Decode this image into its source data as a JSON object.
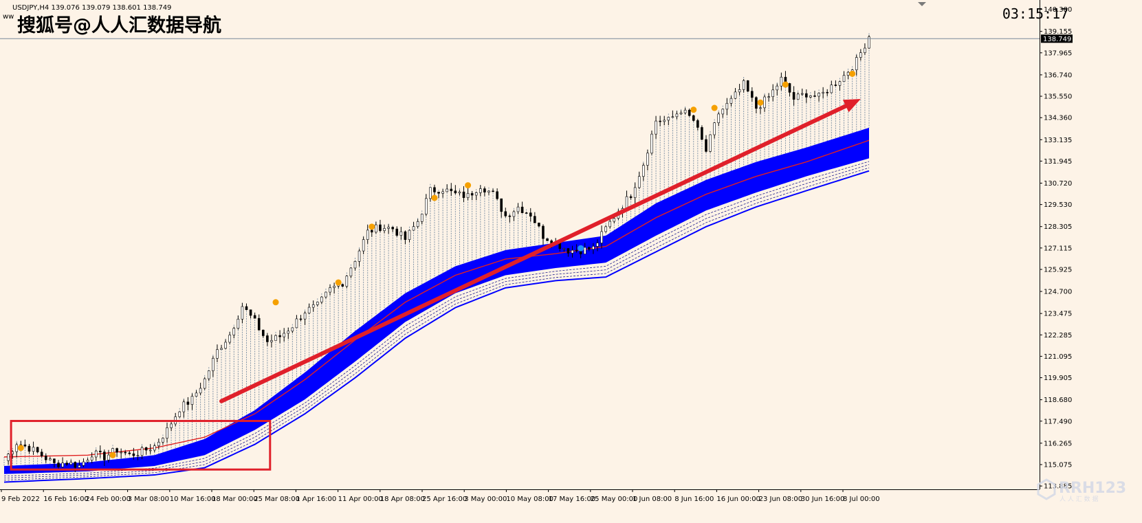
{
  "header": {
    "symbol_ohlc": "USDJPY,H4  139.076 139.079 138.601 138.749",
    "sub_label": "ww",
    "watermark": "搜狐号@人人汇数据导航",
    "clock": "03:15:17"
  },
  "logo": {
    "text": "RRH123",
    "sub": "人 人 汇 数 据"
  },
  "colors": {
    "background": "#fdf3e7",
    "candle": "#000000",
    "fill_lines": "#4a6a8a",
    "ribbon": "#0000ff",
    "ma_red": "#e02020",
    "arrow": "#e0202a",
    "box": "#e0202a",
    "dot_orange": "#f5a000",
    "dot_blue": "#1e90ff",
    "price_label_bg": "#000000"
  },
  "chart_data": {
    "type": "candlestick",
    "symbol": "USDJPY",
    "timeframe": "H4",
    "current_price": "138.749",
    "ylim": [
      113.7,
      140.9
    ],
    "y_ticks": [
      "140.380",
      "139.155",
      "137.965",
      "136.740",
      "135.550",
      "134.360",
      "133.135",
      "131.945",
      "130.720",
      "129.530",
      "128.305",
      "127.115",
      "125.925",
      "124.700",
      "123.475",
      "122.285",
      "121.095",
      "119.905",
      "118.680",
      "117.490",
      "116.265",
      "115.075",
      "113.885"
    ],
    "x_ticks": [
      "9 Feb 2022",
      "16 Feb 16:00",
      "24 Feb 00:00",
      "3 Mar 08:00",
      "10 Mar 16:00",
      "18 Mar 00:00",
      "25 Mar 08:00",
      "1 Apr 16:00",
      "11 Apr 00:00",
      "18 Apr 08:00",
      "25 Apr 16:00",
      "3 May 00:00",
      "10 May 08:00",
      "17 May 16:00",
      "25 May 00:00",
      "1 Jun 08:00",
      "8 Jun 16:00",
      "16 Jun 00:00",
      "23 Jun 08:00",
      "30 Jun 16:00",
      "8 Jul 00:00"
    ],
    "price_path": [
      [
        0,
        115.3
      ],
      [
        3,
        116.3
      ],
      [
        6,
        116.0
      ],
      [
        9,
        115.6
      ],
      [
        12,
        115.1
      ],
      [
        15,
        115.2
      ],
      [
        18,
        115.0
      ],
      [
        21,
        115.7
      ],
      [
        24,
        115.5
      ],
      [
        27,
        115.9
      ],
      [
        30,
        115.6
      ],
      [
        33,
        115.8
      ],
      [
        36,
        116.1
      ],
      [
        39,
        117.0
      ],
      [
        42,
        118.2
      ],
      [
        45,
        118.7
      ],
      [
        48,
        119.8
      ],
      [
        51,
        121.4
      ],
      [
        54,
        122.3
      ],
      [
        57,
        123.9
      ],
      [
        60,
        123.0
      ],
      [
        63,
        121.9
      ],
      [
        66,
        122.2
      ],
      [
        69,
        122.8
      ],
      [
        72,
        123.6
      ],
      [
        75,
        123.9
      ],
      [
        78,
        124.8
      ],
      [
        81,
        125.2
      ],
      [
        84,
        126.5
      ],
      [
        87,
        128.0
      ],
      [
        90,
        128.3
      ],
      [
        93,
        128.2
      ],
      [
        96,
        127.6
      ],
      [
        99,
        128.6
      ],
      [
        102,
        130.3
      ],
      [
        105,
        130.4
      ],
      [
        108,
        130.1
      ],
      [
        111,
        130.0
      ],
      [
        114,
        130.6
      ],
      [
        117,
        130.1
      ],
      [
        120,
        128.9
      ],
      [
        123,
        129.4
      ],
      [
        126,
        129.0
      ],
      [
        129,
        127.8
      ],
      [
        132,
        127.4
      ],
      [
        135,
        127.0
      ],
      [
        138,
        127.0
      ],
      [
        141,
        127.1
      ],
      [
        144,
        128.2
      ],
      [
        147,
        129.2
      ],
      [
        150,
        130.1
      ],
      [
        153,
        131.8
      ],
      [
        156,
        134.2
      ],
      [
        159,
        134.2
      ],
      [
        162,
        134.8
      ],
      [
        165,
        134.2
      ],
      [
        168,
        132.5
      ],
      [
        171,
        134.6
      ],
      [
        174,
        135.3
      ],
      [
        177,
        136.2
      ],
      [
        180,
        134.9
      ],
      [
        183,
        135.5
      ],
      [
        186,
        136.5
      ],
      [
        189,
        135.4
      ],
      [
        192,
        135.7
      ],
      [
        195,
        135.5
      ],
      [
        198,
        136.1
      ],
      [
        201,
        136.7
      ],
      [
        204,
        137.5
      ],
      [
        207,
        138.9
      ]
    ],
    "ribbon": {
      "blue_top": [
        [
          0,
          115.0
        ],
        [
          20,
          115.2
        ],
        [
          36,
          115.6
        ],
        [
          48,
          116.5
        ],
        [
          60,
          118.1
        ],
        [
          72,
          120.2
        ],
        [
          84,
          122.5
        ],
        [
          96,
          124.6
        ],
        [
          108,
          126.1
        ],
        [
          120,
          127.0
        ],
        [
          132,
          127.4
        ],
        [
          144,
          127.8
        ],
        [
          156,
          129.6
        ],
        [
          168,
          130.9
        ],
        [
          180,
          131.9
        ],
        [
          192,
          132.7
        ],
        [
          207,
          133.8
        ]
      ],
      "blue_bottom": [
        [
          0,
          114.55
        ],
        [
          20,
          114.7
        ],
        [
          36,
          115.0
        ],
        [
          48,
          115.6
        ],
        [
          60,
          117.0
        ],
        [
          72,
          118.7
        ],
        [
          84,
          120.8
        ],
        [
          96,
          123.0
        ],
        [
          108,
          124.6
        ],
        [
          120,
          125.6
        ],
        [
          132,
          126.0
        ],
        [
          144,
          126.3
        ],
        [
          156,
          127.8
        ],
        [
          168,
          129.2
        ],
        [
          180,
          130.2
        ],
        [
          192,
          131.1
        ],
        [
          207,
          132.1
        ]
      ],
      "red_ma": [
        [
          0,
          115.5
        ],
        [
          20,
          115.6
        ],
        [
          36,
          116.0
        ],
        [
          48,
          116.6
        ],
        [
          60,
          117.9
        ],
        [
          72,
          119.8
        ],
        [
          84,
          122.0
        ],
        [
          96,
          124.1
        ],
        [
          108,
          125.6
        ],
        [
          120,
          126.5
        ],
        [
          132,
          126.8
        ],
        [
          144,
          127.2
        ],
        [
          156,
          128.8
        ],
        [
          168,
          130.1
        ],
        [
          180,
          131.1
        ],
        [
          192,
          131.9
        ],
        [
          207,
          133.1
        ]
      ],
      "blue_lower": [
        [
          0,
          114.1
        ],
        [
          20,
          114.3
        ],
        [
          36,
          114.5
        ],
        [
          48,
          114.9
        ],
        [
          60,
          116.2
        ],
        [
          72,
          117.9
        ],
        [
          84,
          119.9
        ],
        [
          96,
          122.1
        ],
        [
          108,
          123.8
        ],
        [
          120,
          124.9
        ],
        [
          132,
          125.3
        ],
        [
          144,
          125.5
        ],
        [
          156,
          126.9
        ],
        [
          168,
          128.3
        ],
        [
          180,
          129.4
        ],
        [
          192,
          130.3
        ],
        [
          207,
          131.4
        ]
      ]
    },
    "orange_dots": [
      [
        4,
        116.0
      ],
      [
        26,
        115.6
      ],
      [
        65,
        124.1
      ],
      [
        80,
        125.2
      ],
      [
        88,
        128.3
      ],
      [
        103,
        129.9
      ],
      [
        111,
        130.6
      ],
      [
        165,
        134.8
      ],
      [
        170,
        134.9
      ],
      [
        181,
        135.2
      ],
      [
        187,
        136.2
      ],
      [
        203,
        136.8
      ]
    ],
    "blue_dots": [
      [
        138,
        127.1
      ]
    ],
    "annotations": {
      "arrow": {
        "from": [
          52,
          118.6
        ],
        "to": [
          205,
          135.4
        ]
      },
      "box": {
        "x0": 1,
        "x1": 62,
        "y0": 114.8,
        "y1": 117.5
      }
    }
  }
}
